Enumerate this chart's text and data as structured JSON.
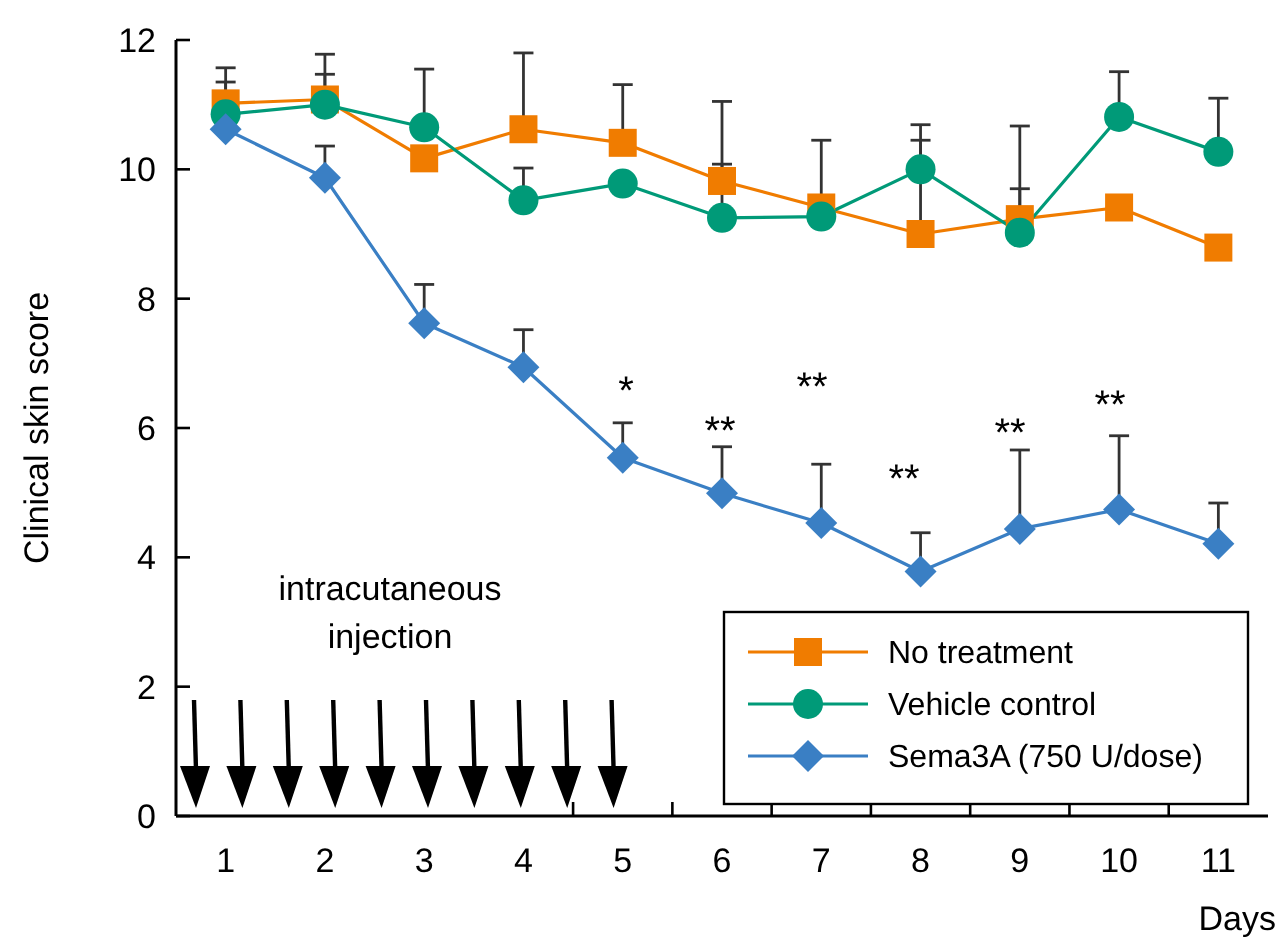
{
  "chart_data": {
    "type": "line",
    "xlabel": "Days",
    "ylabel": "Clinical skin score",
    "x": [
      1,
      2,
      3,
      4,
      5,
      6,
      7,
      8,
      9,
      10,
      11
    ],
    "xlim": [
      0.5,
      11.5
    ],
    "xticks": [
      1,
      2,
      3,
      4,
      {
        "value": 4.5,
        "label": null
      },
      5,
      {
        "value": 5.5,
        "label": null
      },
      6,
      {
        "value": 6.5,
        "label": null
      },
      7,
      {
        "value": 7.5,
        "label": null
      },
      8,
      {
        "value": 8.5,
        "label": null
      },
      9,
      {
        "value": 9.5,
        "label": null
      },
      10,
      {
        "value": 10.5,
        "label": null
      },
      11
    ],
    "ylim": [
      0,
      12
    ],
    "yticks": [
      0,
      2,
      4,
      6,
      8,
      10,
      12
    ],
    "grid": false,
    "legend": "bottom right",
    "line_style": "solid",
    "series": [
      {
        "name": "No treatment",
        "color": "#f07c00",
        "marker": "square",
        "values": [
          11.02,
          11.08,
          10.17,
          10.62,
          10.41,
          9.82,
          9.41,
          9.0,
          9.23,
          9.41,
          8.79
        ],
        "errors": [
          [
            11.02,
            11.57
          ],
          [
            11.08,
            11.78
          ],
          null,
          [
            10.62,
            11.8
          ],
          [
            10.41,
            11.31
          ],
          [
            9.82,
            11.05
          ],
          [
            9.41,
            10.45
          ],
          [
            9.0,
            10.45
          ],
          [
            9.23,
            10.67
          ],
          null,
          null
        ]
      },
      {
        "name": "Vehicle control",
        "color": "#009a78",
        "marker": "circle",
        "values": [
          10.85,
          11.0,
          10.65,
          9.52,
          9.78,
          9.25,
          9.27,
          10.0,
          9.02,
          10.81,
          10.27
        ],
        "errors": [
          [
            10.85,
            11.35
          ],
          [
            11.0,
            11.47
          ],
          [
            10.65,
            11.55
          ],
          [
            9.52,
            10.02
          ],
          null,
          [
            9.25,
            10.08
          ],
          null,
          [
            10.0,
            10.69
          ],
          [
            9.02,
            9.7
          ],
          [
            10.81,
            11.51
          ],
          [
            10.27,
            11.1
          ]
        ]
      },
      {
        "name": "Sema3A (750 U/dose)",
        "color": "#3a7fc4",
        "marker": "diamond",
        "values": [
          10.62,
          9.87,
          7.62,
          6.94,
          5.54,
          4.99,
          4.53,
          3.78,
          4.44,
          4.74,
          4.21
        ],
        "errors": [
          null,
          [
            9.87,
            10.36
          ],
          [
            7.62,
            8.22
          ],
          [
            6.94,
            7.52
          ],
          [
            5.54,
            6.08
          ],
          [
            4.99,
            5.71
          ],
          [
            4.53,
            5.44
          ],
          [
            3.78,
            4.38
          ],
          [
            4.44,
            5.66
          ],
          [
            4.74,
            5.88
          ],
          [
            4.21,
            4.84
          ]
        ]
      }
    ],
    "annotations": [
      "intracutaneous\ninjection",
      "*",
      "**",
      "**",
      "**",
      "**",
      "**"
    ]
  }
}
